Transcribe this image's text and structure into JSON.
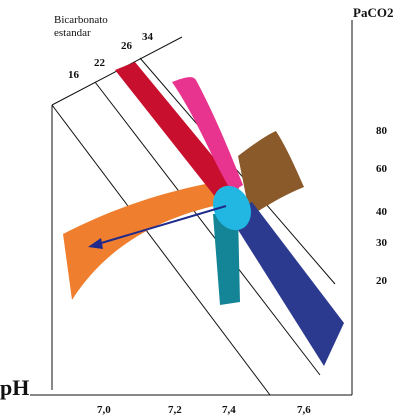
{
  "labels": {
    "bicarbonate_line1": "Bicarbonato",
    "bicarbonate_line2": "estandar",
    "paco2_title": "PaCO2",
    "ph_title": "pH"
  },
  "bicarbonate_ticks": [
    "16",
    "22",
    "26",
    "34"
  ],
  "paco2_ticks": [
    "80",
    "60",
    "40",
    "30",
    "20"
  ],
  "ph_ticks": [
    "7,0",
    "7,2",
    "7,4",
    "7,6"
  ],
  "colors": {
    "orange_band": "#ef7f2e",
    "red_band": "#c8102e",
    "pink_band": "#e8348f",
    "brown_band": "#8b5a2b",
    "navy_band": "#2b3a8f",
    "teal_band": "#138597",
    "cyan_center": "#22b7e3",
    "arrow": "#1f2a8a",
    "lines": "#111111"
  }
}
